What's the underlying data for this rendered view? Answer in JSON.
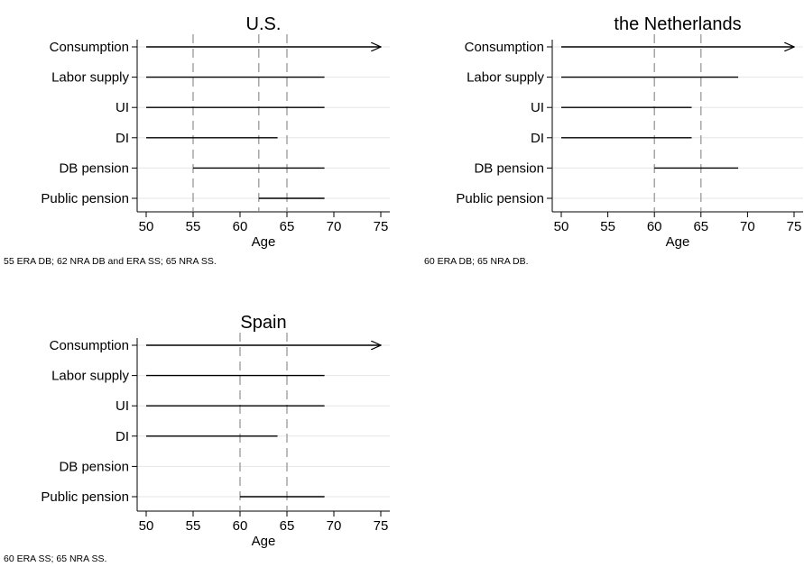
{
  "chart_data": [
    {
      "type": "range-bar",
      "title": "U.S.",
      "xlabel": "Age",
      "xlim": [
        50,
        75
      ],
      "x_ticks": [
        50,
        55,
        60,
        65,
        70,
        75
      ],
      "categories": [
        "Consumption",
        "Labor supply",
        "UI",
        "DI",
        "DB pension",
        "Public pension"
      ],
      "ranges": [
        {
          "category": "Consumption",
          "start": 50,
          "end": 75,
          "arrow": true
        },
        {
          "category": "Labor supply",
          "start": 50,
          "end": 69,
          "arrow": false
        },
        {
          "category": "UI",
          "start": 50,
          "end": 69,
          "arrow": false
        },
        {
          "category": "DI",
          "start": 50,
          "end": 64,
          "arrow": false
        },
        {
          "category": "DB pension",
          "start": 55,
          "end": 69,
          "arrow": false
        },
        {
          "category": "Public pension",
          "start": 62,
          "end": 69,
          "arrow": false
        }
      ],
      "reference_lines": [
        55,
        62,
        65
      ],
      "note": "55 ERA DB; 62 NRA DB and ERA SS; 65 NRA SS."
    },
    {
      "type": "range-bar",
      "title": "the Netherlands",
      "xlabel": "Age",
      "xlim": [
        50,
        75
      ],
      "x_ticks": [
        50,
        55,
        60,
        65,
        70,
        75
      ],
      "categories": [
        "Consumption",
        "Labor supply",
        "UI",
        "DI",
        "DB pension",
        "Public pension"
      ],
      "ranges": [
        {
          "category": "Consumption",
          "start": 50,
          "end": 75,
          "arrow": true
        },
        {
          "category": "Labor supply",
          "start": 50,
          "end": 69,
          "arrow": false
        },
        {
          "category": "UI",
          "start": 50,
          "end": 64,
          "arrow": false
        },
        {
          "category": "DI",
          "start": 50,
          "end": 64,
          "arrow": false
        },
        {
          "category": "DB pension",
          "start": 60,
          "end": 69,
          "arrow": false
        }
      ],
      "reference_lines": [
        60,
        65
      ],
      "note": "60 ERA DB; 65 NRA DB."
    },
    {
      "type": "range-bar",
      "title": "Spain",
      "xlabel": "Age",
      "xlim": [
        50,
        75
      ],
      "x_ticks": [
        50,
        55,
        60,
        65,
        70,
        75
      ],
      "categories": [
        "Consumption",
        "Labor supply",
        "UI",
        "DI",
        "DB pension",
        "Public pension"
      ],
      "ranges": [
        {
          "category": "Consumption",
          "start": 50,
          "end": 75,
          "arrow": true
        },
        {
          "category": "Labor supply",
          "start": 50,
          "end": 69,
          "arrow": false
        },
        {
          "category": "UI",
          "start": 50,
          "end": 69,
          "arrow": false
        },
        {
          "category": "DI",
          "start": 50,
          "end": 64,
          "arrow": false
        },
        {
          "category": "Public pension",
          "start": 60,
          "end": 69,
          "arrow": false
        }
      ],
      "reference_lines": [
        60,
        65
      ],
      "note": "60 ERA SS; 65 NRA SS."
    }
  ],
  "colors": {
    "range_line": "#000000",
    "gridline": "#e6e6e6",
    "reference_line": "#999999",
    "axis": "#000000"
  }
}
